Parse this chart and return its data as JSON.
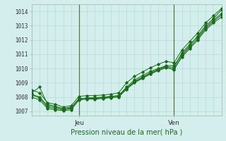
{
  "title": "Pression niveau de la mer( hPa )",
  "ylabel_ticks": [
    1007,
    1008,
    1009,
    1010,
    1011,
    1012,
    1013,
    1014
  ],
  "ylim": [
    1006.7,
    1014.5
  ],
  "xlim": [
    0,
    48
  ],
  "background_color": "#d4eeed",
  "grid_color": "#b0d8cc",
  "line_color": "#1a6b1a",
  "jeu_x": 12,
  "ven_x": 36,
  "x_tick_labels": [
    [
      "Jeu",
      12
    ],
    [
      "Ven",
      36
    ]
  ],
  "lines": [
    [
      0,
      1008.3,
      2,
      1008.7,
      4,
      1007.5,
      6,
      1007.35,
      8,
      1007.2,
      10,
      1007.3,
      12,
      1007.85,
      14,
      1007.95,
      16,
      1007.95,
      18,
      1008.0,
      20,
      1008.05,
      22,
      1008.1,
      24,
      1008.7,
      26,
      1009.2,
      28,
      1009.5,
      30,
      1009.8,
      32,
      1010.0,
      34,
      1010.2,
      36,
      1010.2,
      38,
      1011.0,
      40,
      1011.6,
      42,
      1012.3,
      44,
      1013.0,
      46,
      1013.5,
      48,
      1014.1
    ],
    [
      0,
      1008.0,
      2,
      1007.8,
      4,
      1007.2,
      6,
      1007.1,
      8,
      1007.05,
      10,
      1007.1,
      12,
      1007.8,
      14,
      1007.85,
      16,
      1007.85,
      18,
      1007.9,
      20,
      1007.95,
      22,
      1008.0,
      24,
      1008.55,
      26,
      1009.0,
      28,
      1009.3,
      30,
      1009.6,
      32,
      1009.85,
      34,
      1010.05,
      36,
      1009.95,
      38,
      1010.8,
      40,
      1011.4,
      42,
      1012.0,
      44,
      1012.7,
      46,
      1013.2,
      48,
      1013.6
    ],
    [
      0,
      1008.5,
      2,
      1008.3,
      4,
      1007.6,
      6,
      1007.5,
      8,
      1007.3,
      10,
      1007.4,
      12,
      1008.05,
      14,
      1008.1,
      16,
      1008.1,
      18,
      1008.15,
      20,
      1008.2,
      22,
      1008.3,
      24,
      1009.0,
      26,
      1009.45,
      28,
      1009.75,
      30,
      1010.05,
      32,
      1010.3,
      34,
      1010.5,
      36,
      1010.4,
      38,
      1011.3,
      40,
      1011.9,
      42,
      1012.5,
      44,
      1013.2,
      46,
      1013.7,
      48,
      1014.2
    ],
    [
      0,
      1008.15,
      2,
      1007.95,
      4,
      1007.3,
      6,
      1007.2,
      8,
      1007.1,
      10,
      1007.2,
      12,
      1007.9,
      14,
      1007.9,
      16,
      1007.9,
      18,
      1007.95,
      20,
      1008.0,
      22,
      1008.1,
      24,
      1008.6,
      26,
      1009.05,
      28,
      1009.35,
      30,
      1009.65,
      32,
      1009.9,
      34,
      1010.1,
      36,
      1009.9,
      38,
      1010.9,
      40,
      1011.5,
      42,
      1012.1,
      44,
      1012.8,
      46,
      1013.3,
      48,
      1013.75
    ],
    [
      0,
      1008.2,
      2,
      1008.0,
      4,
      1007.4,
      6,
      1007.3,
      8,
      1007.15,
      10,
      1007.25,
      12,
      1007.87,
      14,
      1007.92,
      16,
      1007.92,
      18,
      1007.97,
      20,
      1008.02,
      22,
      1008.05,
      24,
      1008.62,
      26,
      1009.1,
      28,
      1009.4,
      30,
      1009.7,
      32,
      1009.95,
      34,
      1010.15,
      36,
      1010.05,
      38,
      1011.1,
      40,
      1011.7,
      42,
      1012.2,
      44,
      1012.9,
      46,
      1013.4,
      48,
      1013.85
    ]
  ]
}
